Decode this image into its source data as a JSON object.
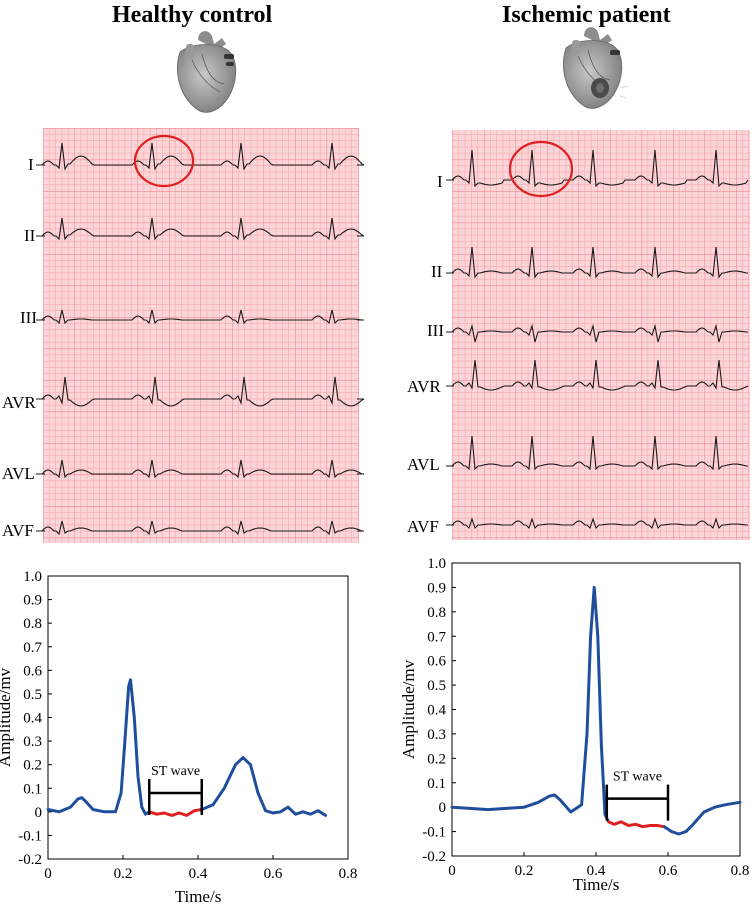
{
  "panels": [
    {
      "title": "Healthy control",
      "heart_icon": "heart-icon",
      "leads": [
        "I",
        "II",
        "III",
        "AVR",
        "AVL",
        "AVF"
      ],
      "highlight_lead": "I",
      "chart_data": {
        "type": "line",
        "title": "",
        "xlabel": "Time/s",
        "ylabel": "Amplitude/mv",
        "xlim": [
          0,
          0.8
        ],
        "ylim": [
          -0.2,
          1.0
        ],
        "x_ticks": [
          "0",
          "0.2",
          "0.4",
          "0.6",
          "0.8"
        ],
        "y_ticks": [
          "-0.2",
          "-0.1",
          "0",
          "0.1",
          "0.2",
          "0.3",
          "0.4",
          "0.5",
          "0.6",
          "0.7",
          "0.8",
          "0.9",
          "1.0"
        ],
        "series": [
          {
            "color": "#1f4e9c",
            "x": [
              0,
              0.03,
              0.06,
              0.08,
              0.09,
              0.1,
              0.12,
              0.15,
              0.18,
              0.195,
              0.205,
              0.215,
              0.22,
              0.23,
              0.24,
              0.25,
              0.26,
              0.27
            ],
            "y": [
              0.01,
              0.0,
              0.02,
              0.055,
              0.06,
              0.045,
              0.01,
              0.0,
              0.0,
              0.08,
              0.3,
              0.53,
              0.56,
              0.4,
              0.15,
              0.02,
              -0.01,
              0.0
            ]
          },
          {
            "color": "#e02020",
            "x": [
              0.27,
              0.29,
              0.31,
              0.33,
              0.35,
              0.37,
              0.39,
              0.41
            ],
            "y": [
              0.0,
              -0.01,
              -0.005,
              -0.015,
              -0.005,
              -0.015,
              0.005,
              0.01
            ]
          },
          {
            "color": "#1f4e9c",
            "x": [
              0.41,
              0.44,
              0.47,
              0.5,
              0.52,
              0.54,
              0.56,
              0.58,
              0.6,
              0.62,
              0.64,
              0.66,
              0.68,
              0.7,
              0.72,
              0.74
            ],
            "y": [
              0.01,
              0.03,
              0.1,
              0.2,
              0.23,
              0.2,
              0.08,
              0.005,
              -0.005,
              0.0,
              0.02,
              -0.01,
              0.0,
              -0.01,
              0.005,
              -0.015
            ]
          }
        ],
        "annotations": [
          {
            "text": "ST wave",
            "x_start": 0.27,
            "x_end": 0.41,
            "y": 0.08
          }
        ]
      }
    },
    {
      "title": "Ischemic patient",
      "heart_icon": "heart-ischemic-icon",
      "leads": [
        "I",
        "II",
        "III",
        "AVR",
        "AVL",
        "AVF"
      ],
      "highlight_lead": "I",
      "chart_data": {
        "type": "line",
        "title": "",
        "xlabel": "Time/s",
        "ylabel": "Amplitude/mv",
        "xlim": [
          0,
          0.8
        ],
        "ylim": [
          -0.2,
          1.0
        ],
        "x_ticks": [
          "0",
          "0.2",
          "0.4",
          "0.6",
          "0.8"
        ],
        "y_ticks": [
          "-0.2",
          "-0.1",
          "0",
          "0.1",
          "0.2",
          "0.3",
          "0.4",
          "0.5",
          "0.6",
          "0.7",
          "0.8",
          "0.9",
          "1.0"
        ],
        "series": [
          {
            "color": "#1f4e9c",
            "x": [
              0,
              0.05,
              0.1,
              0.15,
              0.2,
              0.24,
              0.27,
              0.285,
              0.3,
              0.33,
              0.36,
              0.375,
              0.385,
              0.395,
              0.405,
              0.415,
              0.425,
              0.435
            ],
            "y": [
              0.0,
              -0.005,
              -0.01,
              -0.005,
              0.0,
              0.02,
              0.045,
              0.05,
              0.03,
              -0.02,
              0.01,
              0.3,
              0.7,
              0.9,
              0.7,
              0.25,
              -0.03,
              -0.06
            ]
          },
          {
            "color": "#e02020",
            "x": [
              0.435,
              0.45,
              0.47,
              0.49,
              0.51,
              0.53,
              0.55,
              0.57,
              0.59
            ],
            "y": [
              -0.06,
              -0.07,
              -0.06,
              -0.075,
              -0.07,
              -0.08,
              -0.075,
              -0.075,
              -0.08
            ]
          },
          {
            "color": "#1f4e9c",
            "x": [
              0.59,
              0.61,
              0.63,
              0.65,
              0.67,
              0.7,
              0.73,
              0.76,
              0.8
            ],
            "y": [
              -0.08,
              -0.1,
              -0.11,
              -0.1,
              -0.07,
              -0.02,
              0.0,
              0.01,
              0.02
            ]
          }
        ],
        "annotations": [
          {
            "text": "ST wave",
            "x_start": 0.43,
            "x_end": 0.6,
            "y": 0.035
          }
        ]
      }
    }
  ]
}
